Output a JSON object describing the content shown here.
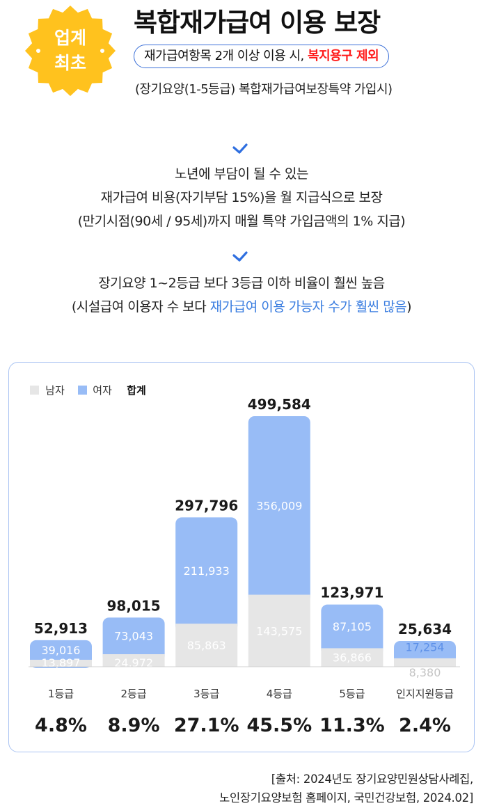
{
  "badge": {
    "line1": "업계",
    "line2": "최초"
  },
  "header": {
    "title": "복합재가급여 이용 보장",
    "pill_text": "재가급여항목 2개 이상 이용 시,",
    "pill_highlight": "복지용구 제외",
    "subtitle": "(장기요양(1-5등급) 복합재가급여보장특약 가입시)"
  },
  "point1": {
    "line1": "노년에 부담이 될 수 있는",
    "line2": "재가급여 비용(자기부담 15%)을 월 지급식으로 보장",
    "line3": "(만기시점(90세 / 95세)까지 매월 특약 가입금액의 1% 지급)"
  },
  "point2": {
    "line1": "장기요양 1~2등급 보다 3등급 이하 비율이 훨씬 높음",
    "line2_prefix": "(시설급여 이용자 수 보다 ",
    "line2_highlight": "재가급여 이용 가능자 수가 훨씬 많음",
    "line2_suffix": ")"
  },
  "chart_data": {
    "type": "bar",
    "stacked": true,
    "legend": [
      "남자",
      "여자",
      "합계"
    ],
    "legend_placement": "top-left",
    "categories": [
      "1등급",
      "2등급",
      "3등급",
      "4등급",
      "5등급",
      "인지지원등급"
    ],
    "series": [
      {
        "name": "남자",
        "values": [
          13897,
          24972,
          85863,
          143575,
          36866,
          8380
        ]
      },
      {
        "name": "여자",
        "values": [
          39016,
          73043,
          211933,
          356009,
          87105,
          17254
        ]
      }
    ],
    "totals": [
      52913,
      98015,
      297796,
      499584,
      123971,
      25634
    ],
    "percentages": [
      "4.8%",
      "8.9%",
      "27.1%",
      "45.5%",
      "11.3%",
      "2.4%"
    ],
    "colors": {
      "male": "#e6e6e6",
      "female": "#98bcf6"
    }
  },
  "source": {
    "line1": "[출처: 2024년도 장기요양민원상담사례집,",
    "line2": "노인장기요양보험 홈페이지, 국민건강보험, 2024.02]"
  }
}
